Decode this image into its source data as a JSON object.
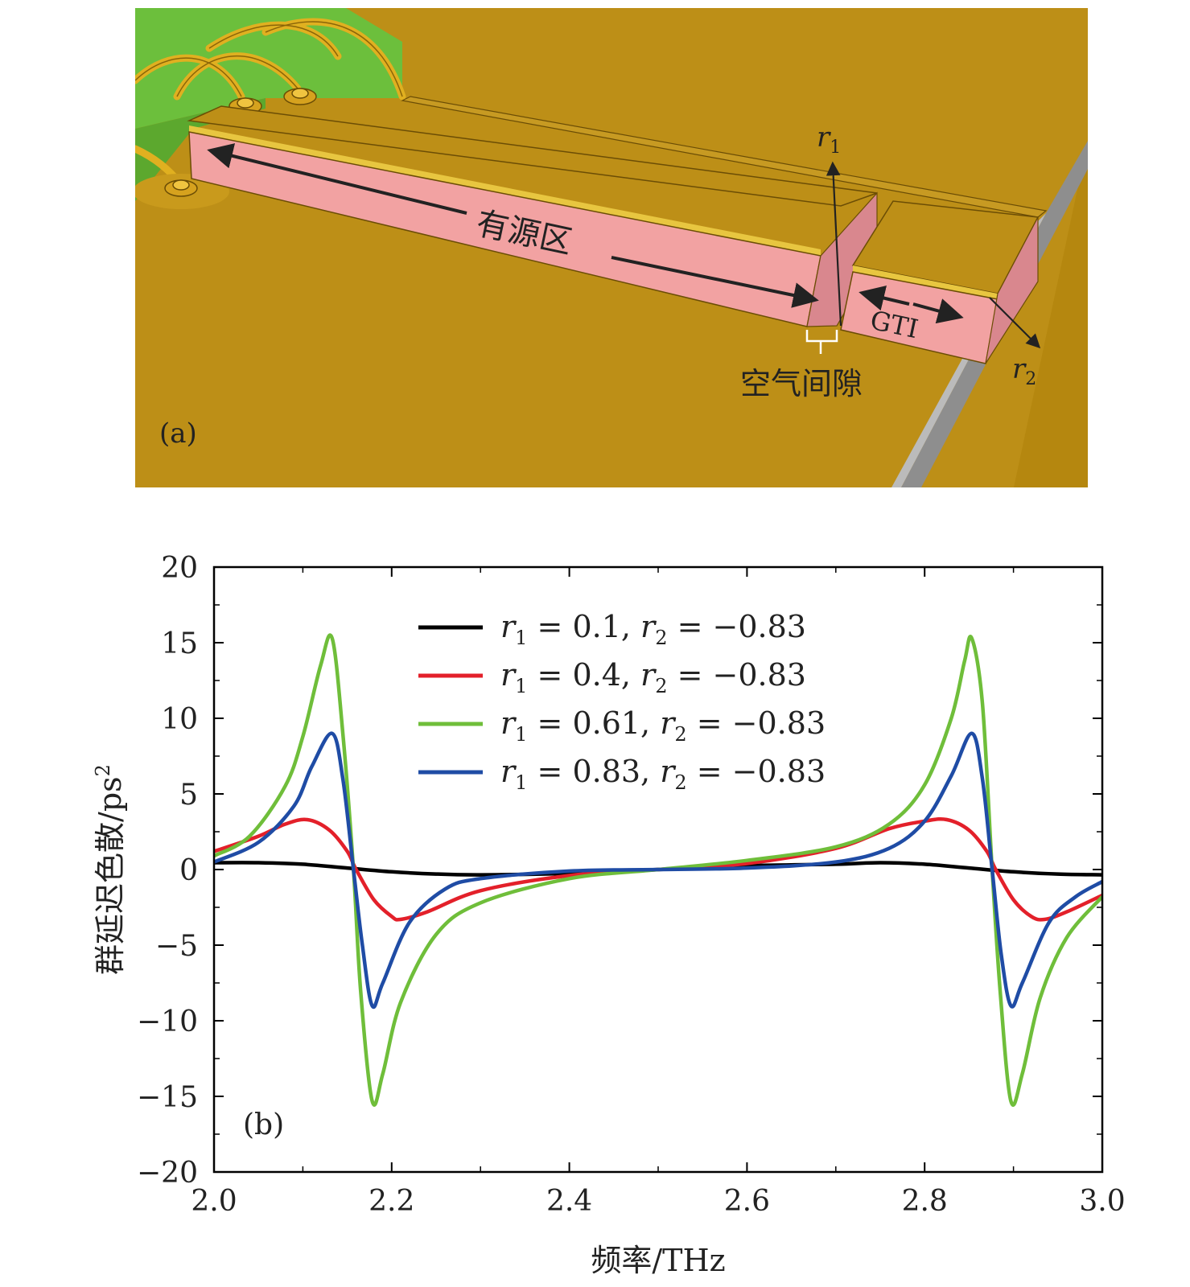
{
  "panel_a": {
    "label": "(a)",
    "active_region_label": "有源区",
    "gti_label": "GTI",
    "air_gap_label": "空气间隙",
    "r1_label": {
      "base": "r",
      "sub": "1"
    },
    "r2_label": {
      "base": "r",
      "sub": "2"
    },
    "colors": {
      "substrate": "#BD8F17",
      "green_board": "#6CBF3C",
      "ridge_side": "#F2A2A2",
      "ridge_top": "#BD8F17",
      "gold_strip": "#E8C640",
      "gap_face": "#D9878E",
      "edge_gray": "#9A9A9A"
    }
  },
  "panel_b": {
    "label": "(b)",
    "chart_data": {
      "type": "line",
      "xlabel": "频率/THz",
      "ylabel": {
        "text": "群延迟色散/ps",
        "superscript": "2"
      },
      "xlim": [
        2.0,
        3.0
      ],
      "ylim": [
        -20,
        20
      ],
      "xticks": [
        2.0,
        2.2,
        2.4,
        2.6,
        2.8,
        3.0
      ],
      "xtick_labels": [
        "2.0",
        "2.2",
        "2.4",
        "2.6",
        "2.8",
        "3.0"
      ],
      "yticks": [
        20,
        15,
        10,
        5,
        0,
        -5,
        -10,
        -15,
        -20
      ],
      "ytick_labels": [
        "20",
        "15",
        "10",
        "5",
        "0",
        "−5",
        "−10",
        "−15",
        "−20"
      ],
      "legend_position": "top",
      "grid": false,
      "series": [
        {
          "name": "r1 = 0.1, r2 = −0.83",
          "legend": {
            "r1": "0.1",
            "r2": "−0.83"
          },
          "color": "#000000",
          "x": [
            2.0,
            2.05,
            2.1,
            2.15,
            2.2,
            2.25,
            2.3,
            2.4,
            2.5,
            2.6,
            2.7,
            2.75,
            2.8,
            2.85,
            2.9,
            2.95,
            3.0
          ],
          "y": [
            0.45,
            0.45,
            0.35,
            0.1,
            -0.15,
            -0.3,
            -0.35,
            -0.25,
            0.0,
            0.25,
            0.35,
            0.45,
            0.35,
            0.1,
            -0.15,
            -0.3,
            -0.35
          ]
        },
        {
          "name": "r1 = 0.4, r2 = −0.83",
          "legend": {
            "r1": "0.4",
            "r2": "−0.83"
          },
          "color": "#E3202A",
          "x": [
            2.0,
            2.05,
            2.08,
            2.105,
            2.13,
            2.15,
            2.16,
            2.18,
            2.2,
            2.21,
            2.24,
            2.3,
            2.4,
            2.5,
            2.6,
            2.7,
            2.76,
            2.8,
            2.825,
            2.85,
            2.87,
            2.88,
            2.9,
            2.92,
            2.935,
            2.96,
            3.0
          ],
          "y": [
            1.2,
            2.2,
            3.0,
            3.3,
            2.6,
            1.2,
            0.0,
            -2.0,
            -3.1,
            -3.3,
            -2.8,
            -1.4,
            -0.4,
            0.0,
            0.4,
            1.4,
            2.7,
            3.2,
            3.3,
            2.6,
            1.2,
            0.0,
            -2.0,
            -3.1,
            -3.3,
            -2.8,
            -1.7
          ]
        },
        {
          "name": "r1 = 0.61, r2 = −0.83",
          "legend": {
            "r1": "0.61",
            "r2": "−0.83"
          },
          "color": "#6FBE3A",
          "x": [
            2.0,
            2.04,
            2.08,
            2.1,
            2.12,
            2.133,
            2.145,
            2.157,
            2.165,
            2.178,
            2.19,
            2.21,
            2.25,
            2.3,
            2.4,
            2.5,
            2.6,
            2.7,
            2.76,
            2.8,
            2.83,
            2.845,
            2.853,
            2.865,
            2.876,
            2.885,
            2.897,
            2.91,
            2.93,
            2.96,
            3.0
          ],
          "y": [
            0.9,
            2.2,
            5.5,
            8.8,
            13.5,
            15.3,
            9.0,
            0.0,
            -8.0,
            -15.3,
            -13.5,
            -8.8,
            -4.3,
            -2.2,
            -0.6,
            0.0,
            0.6,
            1.5,
            3.0,
            5.6,
            10.0,
            13.8,
            15.3,
            11.0,
            0.0,
            -8.0,
            -15.3,
            -13.5,
            -8.5,
            -4.5,
            -1.8
          ]
        },
        {
          "name": "r1 = 0.83, r2 = −0.83",
          "legend": {
            "r1": "0.83",
            "r2": "−0.83"
          },
          "color": "#1F4CA5",
          "x": [
            2.0,
            2.05,
            2.09,
            2.11,
            2.133,
            2.145,
            2.157,
            2.167,
            2.178,
            2.19,
            2.22,
            2.26,
            2.3,
            2.4,
            2.5,
            2.6,
            2.7,
            2.76,
            2.8,
            2.83,
            2.853,
            2.865,
            2.876,
            2.886,
            2.897,
            2.91,
            2.94,
            2.97,
            3.0
          ],
          "y": [
            0.5,
            1.8,
            4.2,
            6.8,
            9.0,
            6.0,
            0.0,
            -5.0,
            -9.0,
            -7.5,
            -3.5,
            -1.3,
            -0.6,
            -0.1,
            0.0,
            0.1,
            0.5,
            1.4,
            3.2,
            6.2,
            9.0,
            6.0,
            0.0,
            -5.5,
            -9.0,
            -7.5,
            -3.5,
            -1.8,
            -0.8
          ]
        }
      ]
    }
  }
}
